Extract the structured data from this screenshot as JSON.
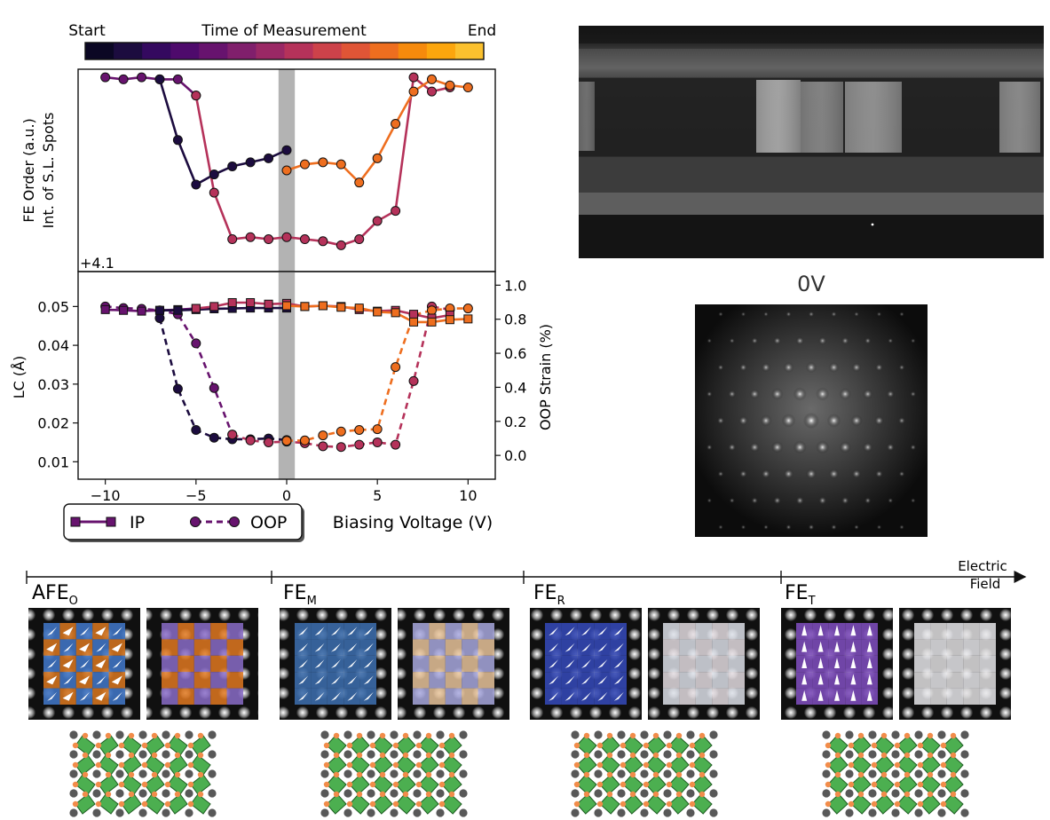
{
  "colorbar": {
    "start_label": "Start",
    "title": "Time of Measurement",
    "end_label": "End",
    "colors": [
      "#0b0724",
      "#1c0c3f",
      "#34095f",
      "#4e0a6c",
      "#67136e",
      "#801f6c",
      "#9a2865",
      "#b5325a",
      "#cd424a",
      "#e05536",
      "#ee6e1f",
      "#f68a0c",
      "#fca60d",
      "#fbc12e"
    ]
  },
  "chart_data": [
    {
      "type": "line",
      "id": "fe-order",
      "ylabel": [
        "FE Order (a.u.)",
        "Int. of S.L. Spots"
      ],
      "offset_label": "+4.1",
      "xlim": [
        -11.5,
        11.5
      ],
      "ylim": [
        0,
        1
      ],
      "shaded_x": [
        -0.45,
        0.45
      ],
      "series": [
        {
          "points": [
            [
              -10,
              0.96
            ],
            [
              -9,
              0.95
            ],
            [
              -8,
              0.96
            ],
            [
              -7,
              0.95
            ],
            [
              -6,
              0.95
            ],
            [
              -5,
              0.87
            ]
          ],
          "color": "#67136e"
        },
        {
          "points": [
            [
              -7,
              0.95
            ],
            [
              -6,
              0.65
            ],
            [
              -5,
              0.43
            ],
            [
              -4,
              0.48
            ],
            [
              -3,
              0.52
            ],
            [
              -2,
              0.54
            ],
            [
              -1,
              0.56
            ],
            [
              0,
              0.6
            ]
          ],
          "color": "#1c0c3f"
        },
        {
          "points": [
            [
              -5,
              0.87
            ],
            [
              -4,
              0.39
            ],
            [
              -3,
              0.16
            ],
            [
              -2,
              0.17
            ],
            [
              -1,
              0.16
            ],
            [
              0,
              0.17
            ],
            [
              1,
              0.16
            ],
            [
              2,
              0.15
            ],
            [
              3,
              0.13
            ],
            [
              4,
              0.16
            ],
            [
              5,
              0.25
            ],
            [
              6,
              0.3
            ],
            [
              7,
              0.96
            ],
            [
              8,
              0.89
            ],
            [
              9,
              0.91
            ]
          ],
          "color": "#b5325a"
        },
        {
          "points": [
            [
              0,
              0.5
            ],
            [
              1,
              0.53
            ],
            [
              2,
              0.54
            ],
            [
              3,
              0.53
            ],
            [
              4,
              0.44
            ],
            [
              5,
              0.56
            ],
            [
              6,
              0.73
            ],
            [
              7,
              0.89
            ],
            [
              8,
              0.95
            ],
            [
              9,
              0.92
            ],
            [
              10,
              0.91
            ]
          ],
          "color": "#ee6e1f"
        }
      ]
    },
    {
      "type": "line",
      "id": "lattice",
      "ylabel": "LC (Å)",
      "y2label": "OOP Strain (%)",
      "xlabel": "Biasing Voltage (V)",
      "xlim": [
        -11.5,
        11.5
      ],
      "ylim": [
        0.0055,
        0.059
      ],
      "y2lim": [
        -0.14,
        1.08
      ],
      "xticks": [
        -10,
        -5,
        0,
        5,
        10
      ],
      "yticks": [
        0.01,
        0.02,
        0.03,
        0.04,
        0.05
      ],
      "ytick_labels": [
        "0.01",
        "0.02",
        "0.03",
        "0.04",
        "0.05"
      ],
      "y2ticks": [
        0.0,
        0.2,
        0.4,
        0.6,
        0.8,
        1.0
      ],
      "y2tick_labels": [
        "0.0",
        "0.2",
        "0.4",
        "0.6",
        "0.8",
        "1.0"
      ],
      "shaded_x": [
        -0.45,
        0.45
      ],
      "ip_series": [
        {
          "points": [
            [
              -10,
              0.0492
            ],
            [
              -9,
              0.049
            ],
            [
              -8,
              0.0488
            ],
            [
              -7,
              0.049
            ],
            [
              -6,
              0.0492
            ],
            [
              -5,
              0.0495
            ]
          ],
          "color": "#67136e"
        },
        {
          "points": [
            [
              -7,
              0.049
            ],
            [
              -6,
              0.049
            ],
            [
              -5,
              0.0492
            ],
            [
              -4,
              0.0494
            ],
            [
              -3,
              0.0495
            ],
            [
              -2,
              0.0496
            ],
            [
              -1,
              0.0496
            ],
            [
              0,
              0.0496
            ]
          ],
          "color": "#1c0c3f"
        },
        {
          "points": [
            [
              -5,
              0.0495
            ],
            [
              -4,
              0.05
            ],
            [
              -3,
              0.051
            ],
            [
              -2,
              0.051
            ],
            [
              -1,
              0.0506
            ],
            [
              0,
              0.0508
            ],
            [
              1,
              0.05
            ],
            [
              2,
              0.0502
            ],
            [
              3,
              0.05
            ],
            [
              4,
              0.0492
            ],
            [
              5,
              0.0488
            ],
            [
              6,
              0.049
            ],
            [
              7,
              0.048
            ],
            [
              8,
              0.047
            ],
            [
              9,
              0.0478
            ]
          ],
          "color": "#b5325a"
        },
        {
          "points": [
            [
              0,
              0.0502
            ],
            [
              1,
              0.05
            ],
            [
              2,
              0.0502
            ],
            [
              3,
              0.0498
            ],
            [
              4,
              0.0496
            ],
            [
              5,
              0.0486
            ],
            [
              6,
              0.0484
            ],
            [
              7,
              0.046
            ],
            [
              8,
              0.046
            ],
            [
              9,
              0.0466
            ],
            [
              10,
              0.0468
            ]
          ],
          "color": "#ee6e1f"
        }
      ],
      "oop_series": [
        {
          "points": [
            [
              -10,
              0.05
            ],
            [
              -9,
              0.0496
            ],
            [
              -8,
              0.0494
            ],
            [
              -7,
              0.049
            ],
            [
              -6,
              0.048
            ],
            [
              -5,
              0.0405
            ],
            [
              -4,
              0.029
            ],
            [
              -3,
              0.017
            ]
          ],
          "color": "#67136e"
        },
        {
          "points": [
            [
              -7,
              0.047
            ],
            [
              -6,
              0.0288
            ],
            [
              -5,
              0.0182
            ],
            [
              -4,
              0.0162
            ],
            [
              -3,
              0.0158
            ],
            [
              -2,
              0.0158
            ],
            [
              -1,
              0.016
            ],
            [
              0,
              0.0156
            ]
          ],
          "color": "#1c0c3f"
        },
        {
          "points": [
            [
              -3,
              0.017
            ],
            [
              -2,
              0.0155
            ],
            [
              -1,
              0.015
            ],
            [
              0,
              0.0152
            ],
            [
              1,
              0.0148
            ],
            [
              2,
              0.014
            ],
            [
              3,
              0.0138
            ],
            [
              4,
              0.0144
            ],
            [
              5,
              0.015
            ],
            [
              6,
              0.0144
            ],
            [
              7,
              0.0308
            ],
            [
              8,
              0.05
            ],
            [
              9,
              0.0492
            ]
          ],
          "color": "#b5325a"
        },
        {
          "points": [
            [
              0,
              0.0154
            ],
            [
              1,
              0.0155
            ],
            [
              2,
              0.0168
            ],
            [
              3,
              0.0178
            ],
            [
              4,
              0.0182
            ],
            [
              5,
              0.0184
            ],
            [
              6,
              0.0344
            ],
            [
              7,
              0.0478
            ],
            [
              8,
              0.049
            ],
            [
              9,
              0.0495
            ],
            [
              10,
              0.0495
            ]
          ],
          "color": "#ee6e1f"
        }
      ]
    }
  ],
  "legend": {
    "ip_label": "IP",
    "oop_label": "OOP"
  },
  "micrograph": {
    "label": "0V"
  },
  "phases": {
    "axis_label": [
      "Electric",
      "Field"
    ],
    "items": [
      {
        "base": "AFE",
        "sub": "O",
        "fill": "afe"
      },
      {
        "base": "FE",
        "sub": "M",
        "fill": "fem"
      },
      {
        "base": "FE",
        "sub": "R",
        "fill": "fer"
      },
      {
        "base": "FE",
        "sub": "T",
        "fill": "fet"
      }
    ]
  }
}
